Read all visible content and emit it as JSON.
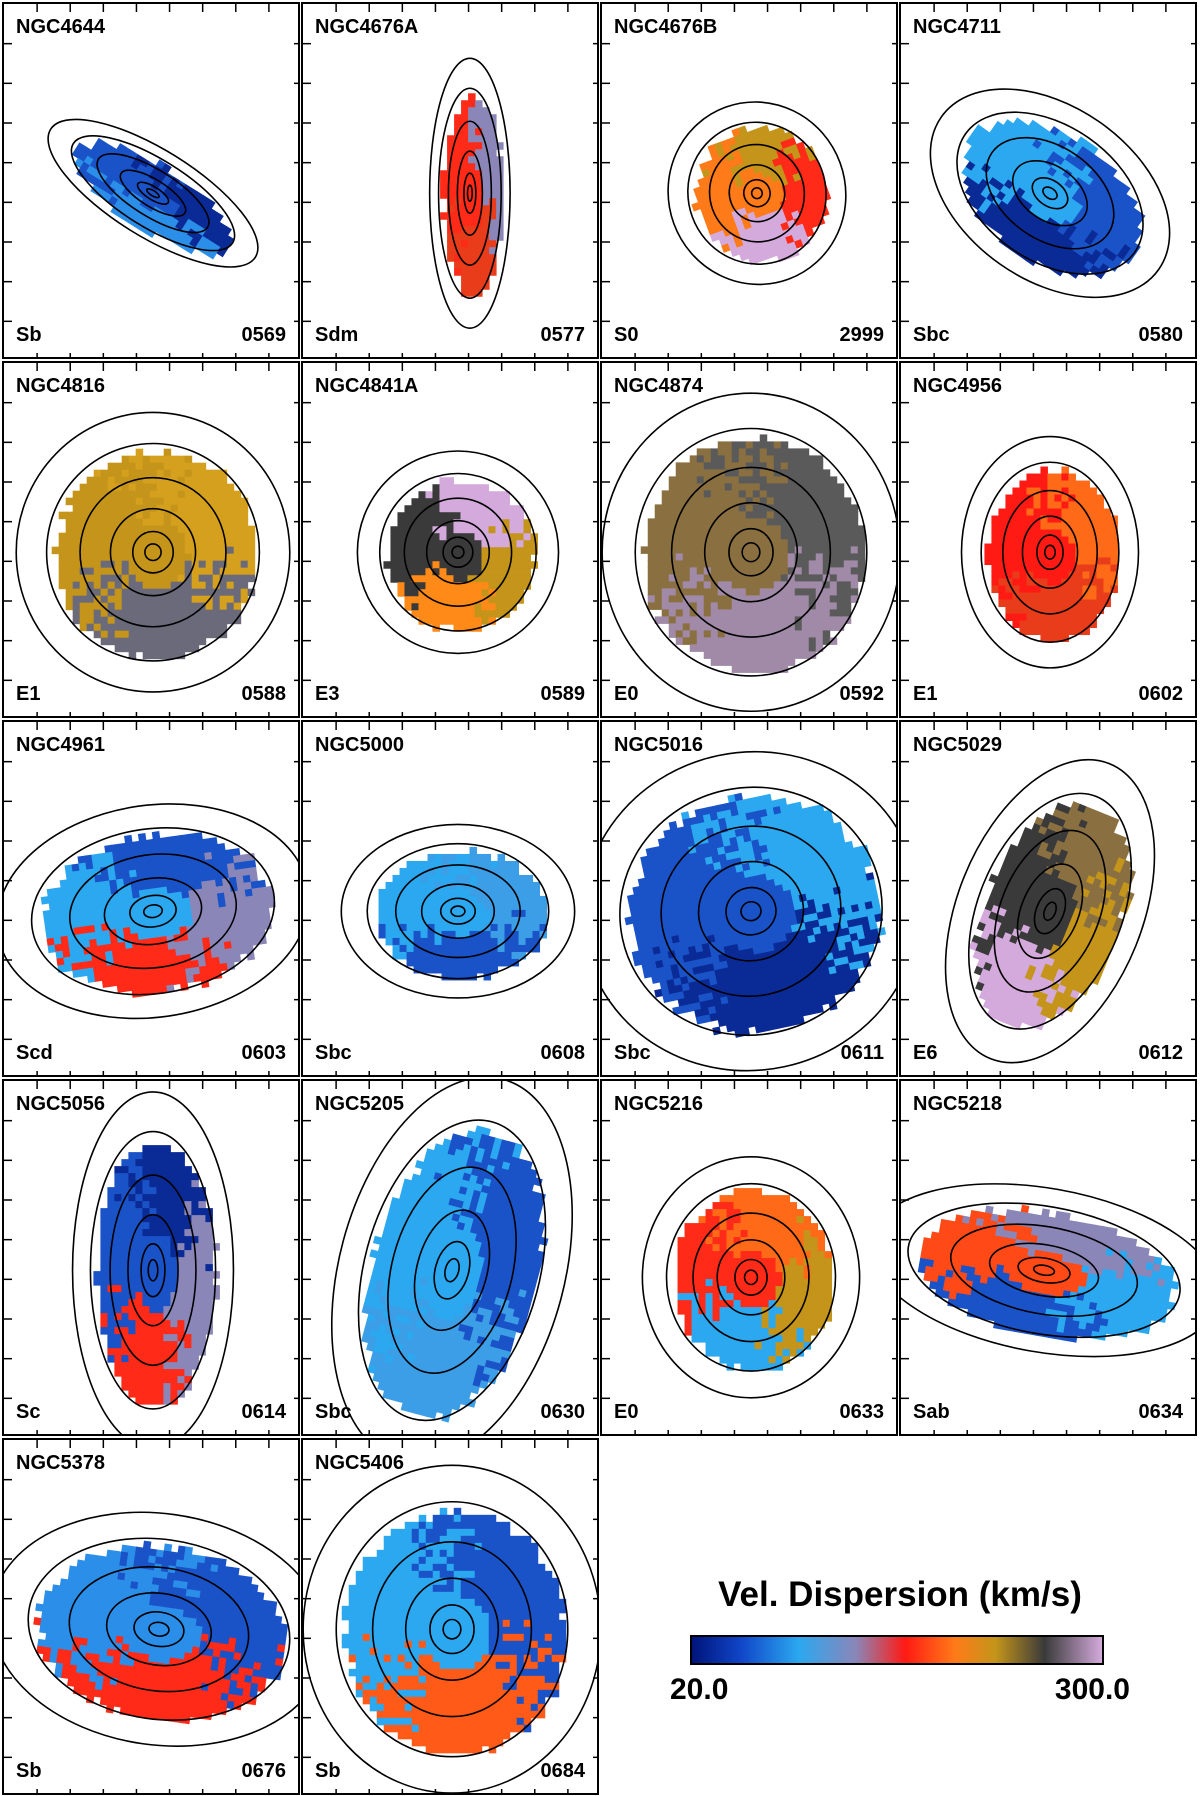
{
  "panels": [
    {
      "name": "NGC4644",
      "type": "Sb",
      "id": "0569",
      "map": {
        "rx": 0.3,
        "ry": 0.09,
        "rot": 32,
        "dx": 0,
        "dy": 0,
        "colors": [
          "#1a52c8",
          "#0a2a96",
          "#2b8ee8"
        ]
      }
    },
    {
      "name": "NGC4676A",
      "type": "Sdm",
      "id": "0577",
      "map": {
        "rx": 0.1,
        "ry": 0.28,
        "rot": 0,
        "dx": 0.06,
        "dy": 0,
        "colors": [
          "#ff2a18",
          "#8a86b8",
          "#e83c1a"
        ]
      }
    },
    {
      "name": "NGC4676B",
      "type": "S0",
      "id": "2999",
      "map": {
        "rx": 0.22,
        "ry": 0.19,
        "rot": -20,
        "dx": 0.02,
        "dy": 0,
        "colors": [
          "#ff7a18",
          "#c4951a",
          "#ff2a18",
          "#d4aadc"
        ]
      }
    },
    {
      "name": "NGC4711",
      "type": "Sbc",
      "id": "0580",
      "map": {
        "rx": 0.33,
        "ry": 0.18,
        "rot": 35,
        "dx": 0,
        "dy": 0,
        "colors": [
          "#2ba8f0",
          "#1a52c8",
          "#0a2a96"
        ]
      }
    },
    {
      "name": "NGC4816",
      "type": "E1",
      "id": "0588",
      "map": {
        "rx": 0.34,
        "ry": 0.29,
        "rot": 0,
        "dx": 0,
        "dy": 0,
        "colors": [
          "#c4951a",
          "#d4a01e",
          "#6a6a7a"
        ]
      }
    },
    {
      "name": "NGC4841A",
      "type": "E3",
      "id": "0589",
      "map": {
        "rx": 0.25,
        "ry": 0.21,
        "rot": 0,
        "dx": 0.02,
        "dy": 0,
        "colors": [
          "#3a3a3a",
          "#d4aadc",
          "#c4951a",
          "#ff8a18"
        ]
      }
    },
    {
      "name": "NGC4874",
      "type": "E0",
      "id": "0592",
      "map": {
        "rx": 0.37,
        "ry": 0.33,
        "rot": 0,
        "dx": 0,
        "dy": 0,
        "colors": [
          "#8a7040",
          "#5a5a5a",
          "#a08aa8"
        ]
      }
    },
    {
      "name": "NGC4956",
      "type": "E1",
      "id": "0602",
      "map": {
        "rx": 0.22,
        "ry": 0.24,
        "rot": 0,
        "dx": 0,
        "dy": 0,
        "colors": [
          "#ff1a14",
          "#ff6a18",
          "#e83c1a"
        ]
      }
    },
    {
      "name": "NGC4961",
      "type": "Scd",
      "id": "0603",
      "map": {
        "rx": 0.39,
        "ry": 0.22,
        "rot": -8,
        "dx": 0,
        "dy": 0,
        "colors": [
          "#2ba8f0",
          "#1a52c8",
          "#8a86b8",
          "#ff2a18"
        ]
      }
    },
    {
      "name": "NGC5000",
      "type": "Sbc",
      "id": "0608",
      "map": {
        "rx": 0.29,
        "ry": 0.18,
        "rot": 0,
        "dx": 0.02,
        "dy": 0,
        "colors": [
          "#2ba8f0",
          "#3c9ee6",
          "#1a52c8"
        ]
      }
    },
    {
      "name": "NGC5016",
      "type": "Sbc",
      "id": "0611",
      "map": {
        "rx": 0.42,
        "ry": 0.33,
        "rot": -12,
        "dx": 0,
        "dy": 0,
        "colors": [
          "#1a52c8",
          "#2ba8f0",
          "#0a2a96"
        ]
      }
    },
    {
      "name": "NGC5029",
      "type": "E6",
      "id": "0612",
      "map": {
        "rx": 0.23,
        "ry": 0.33,
        "rot": 22,
        "dx": 0,
        "dy": 0,
        "colors": [
          "#3a3a3a",
          "#8a7040",
          "#c4951a",
          "#d4aadc"
        ]
      }
    },
    {
      "name": "NGC5056",
      "type": "Sc",
      "id": "0614",
      "map": {
        "rx": 0.2,
        "ry": 0.37,
        "rot": 0,
        "dx": 0,
        "dy": 0,
        "colors": [
          "#1a52c8",
          "#0a2a96",
          "#8a86b8",
          "#ff2a18"
        ]
      }
    },
    {
      "name": "NGC5205",
      "type": "Sbc",
      "id": "0630",
      "map": {
        "rx": 0.28,
        "ry": 0.41,
        "rot": 15,
        "dx": 0,
        "dy": 0,
        "colors": [
          "#2ba8f0",
          "#1a52c8",
          "#3c9ee6"
        ]
      }
    },
    {
      "name": "NGC5216",
      "type": "E0",
      "id": "0633",
      "map": {
        "rx": 0.27,
        "ry": 0.25,
        "rot": 0,
        "dx": 0,
        "dy": 0.02,
        "colors": [
          "#ff2a18",
          "#ff6a18",
          "#c4951a",
          "#2ba8f0"
        ]
      }
    },
    {
      "name": "NGC5218",
      "type": "Sab",
      "id": "0634",
      "map": {
        "rx": 0.44,
        "ry": 0.17,
        "rot": 10,
        "dx": -0.02,
        "dy": 0,
        "colors": [
          "#ff4a18",
          "#8a86b8",
          "#2ba8f0",
          "#1a52c8"
        ]
      }
    },
    {
      "name": "NGC5378",
      "type": "Sb",
      "id": "0676",
      "map": {
        "rx": 0.42,
        "ry": 0.24,
        "rot": 8,
        "dx": 0.02,
        "dy": 0,
        "colors": [
          "#2b8ee8",
          "#1a52c8",
          "#ff2a18"
        ]
      }
    },
    {
      "name": "NGC5406",
      "type": "Sb",
      "id": "0684",
      "map": {
        "rx": 0.37,
        "ry": 0.34,
        "rot": 0,
        "dx": 0,
        "dy": 0,
        "colors": [
          "#2ba8f0",
          "#1a52c8",
          "#ff5a18"
        ]
      }
    }
  ],
  "colorbar": {
    "title": "Vel. Dispersion (km/s)",
    "min_label": "20.0",
    "max_label": "300.0",
    "colors": [
      "#00147a",
      "#1046c8",
      "#2ba8f0",
      "#8a86b8",
      "#ff1a14",
      "#ff7a18",
      "#c4951a",
      "#3a3a3a",
      "#d4aadc"
    ]
  }
}
